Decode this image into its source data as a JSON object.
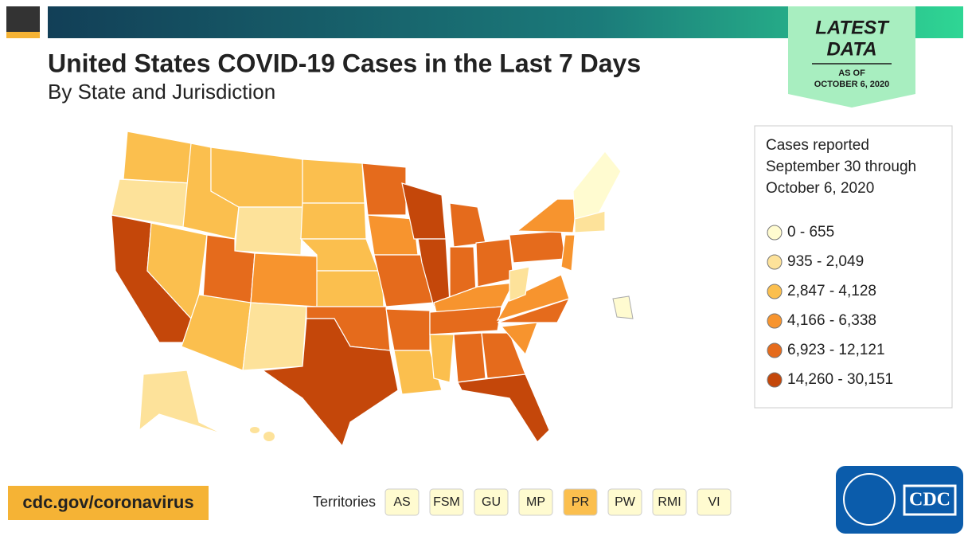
{
  "header": {
    "title": "United States COVID-19 Cases in the Last 7 Days",
    "subtitle": "By State and Jurisdiction"
  },
  "badge": {
    "line1": "LATEST",
    "line2": "DATA",
    "line3": "AS OF",
    "line4": "OCTOBER 6, 2020"
  },
  "legend": {
    "title": [
      "Cases reported",
      "September 30 through",
      "October 6, 2020"
    ],
    "items": [
      "0 - 655",
      "935 - 2,049",
      "2,847 - 4,128",
      "4,166 - 6,338",
      "6,923 - 12,121",
      "14,260 - 30,151"
    ]
  },
  "footer": {
    "url": "cdc.gov/coronavirus",
    "territories_label": "Territories",
    "territories": [
      "AS",
      "FSM",
      "GU",
      "MP",
      "PR",
      "PW",
      "RMI",
      "VI"
    ]
  },
  "logo": "CDC"
}
